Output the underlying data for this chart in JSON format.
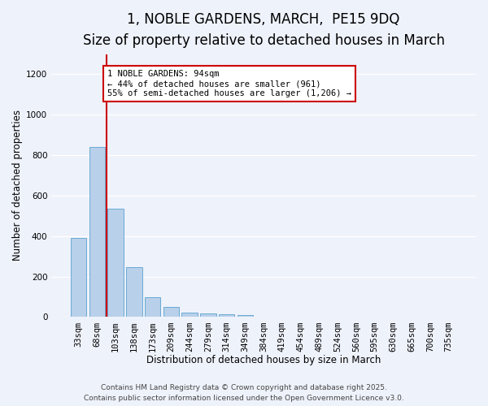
{
  "title_line1": "1, NOBLE GARDENS, MARCH,  PE15 9DQ",
  "title_line2": "Size of property relative to detached houses in March",
  "xlabel": "Distribution of detached houses by size in March",
  "ylabel": "Number of detached properties",
  "categories": [
    "33sqm",
    "68sqm",
    "103sqm",
    "138sqm",
    "173sqm",
    "209sqm",
    "244sqm",
    "279sqm",
    "314sqm",
    "349sqm",
    "384sqm",
    "419sqm",
    "454sqm",
    "489sqm",
    "524sqm",
    "560sqm",
    "595sqm",
    "630sqm",
    "665sqm",
    "700sqm",
    "735sqm"
  ],
  "values": [
    390,
    840,
    535,
    248,
    100,
    52,
    22,
    18,
    14,
    10,
    0,
    0,
    0,
    0,
    0,
    0,
    0,
    0,
    0,
    0,
    0
  ],
  "bar_color": "#b8d0ea",
  "bar_edge_color": "#6aaad4",
  "ylim": [
    0,
    1300
  ],
  "yticks": [
    0,
    200,
    400,
    600,
    800,
    1000,
    1200
  ],
  "vline_x": 1.5,
  "vline_color": "#cc0000",
  "annotation_text": "1 NOBLE GARDENS: 94sqm\n← 44% of detached houses are smaller (961)\n55% of semi-detached houses are larger (1,206) →",
  "annotation_box_color": "#cc0000",
  "footer_line1": "Contains HM Land Registry data © Crown copyright and database right 2025.",
  "footer_line2": "Contains public sector information licensed under the Open Government Licence v3.0.",
  "background_color": "#eef2fb",
  "grid_color": "#ffffff",
  "title_fontsize": 12,
  "subtitle_fontsize": 10,
  "axis_label_fontsize": 8.5,
  "tick_fontsize": 7.5,
  "footer_fontsize": 6.5
}
